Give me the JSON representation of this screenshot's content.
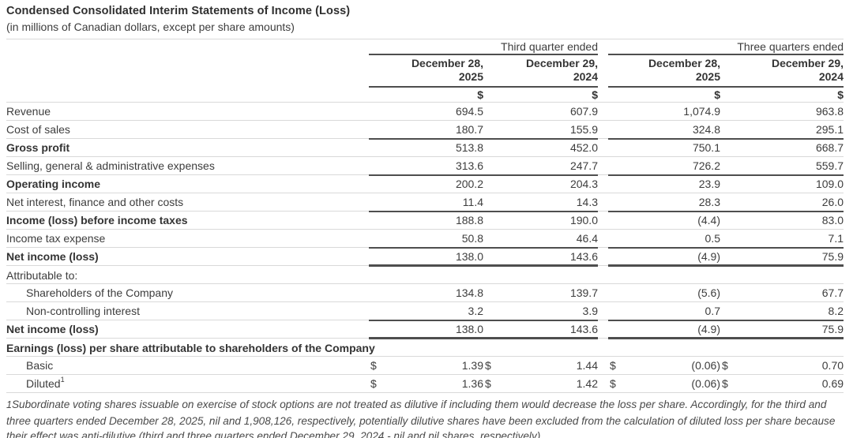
{
  "title": "Condensed Consolidated Interim Statements of Income (Loss)",
  "subtitle": "(in millions of Canadian dollars, except per share amounts)",
  "table": {
    "group_headers": [
      "Third quarter ended",
      "Three quarters ended"
    ],
    "col_headers": [
      {
        "line1": "December 28,",
        "line2": "2025"
      },
      {
        "line1": "December 29,",
        "line2": "2024"
      },
      {
        "line1": "December 28,",
        "line2": "2025"
      },
      {
        "line1": "December 29,",
        "line2": "2024"
      }
    ],
    "currency_symbol": "$",
    "rows": [
      {
        "label": "Revenue",
        "values": [
          "694.5",
          "607.9",
          "1,074.9",
          "963.8"
        ]
      },
      {
        "label": "Cost of sales",
        "values": [
          "180.7",
          "155.9",
          "324.8",
          "295.1"
        ]
      },
      {
        "label": "Gross profit",
        "bold": true,
        "rule_top": true,
        "values": [
          "513.8",
          "452.0",
          "750.1",
          "668.7"
        ]
      },
      {
        "label": "Selling, general & administrative expenses",
        "values": [
          "313.6",
          "247.7",
          "726.2",
          "559.7"
        ]
      },
      {
        "label": "Operating income",
        "bold": true,
        "rule_top": true,
        "values": [
          "200.2",
          "204.3",
          "23.9",
          "109.0"
        ]
      },
      {
        "label": "Net interest, finance and other costs",
        "values": [
          "11.4",
          "14.3",
          "28.3",
          "26.0"
        ]
      },
      {
        "label": "Income (loss) before income taxes",
        "bold": true,
        "rule_top": true,
        "values": [
          "188.8",
          "190.0",
          "(4.4)",
          "83.0"
        ]
      },
      {
        "label": "Income tax expense",
        "values": [
          "50.8",
          "46.4",
          "0.5",
          "7.1"
        ]
      },
      {
        "label": "Net income (loss)",
        "bold": true,
        "rule_top": true,
        "rule_bottom_thick": true,
        "values": [
          "138.0",
          "143.6",
          "(4.9)",
          "75.9"
        ]
      },
      {
        "label": "Attributable to:"
      },
      {
        "label": "Shareholders of the Company",
        "indent": true,
        "values": [
          "134.8",
          "139.7",
          "(5.6)",
          "67.7"
        ]
      },
      {
        "label": "Non-controlling interest",
        "indent": true,
        "values": [
          "3.2",
          "3.9",
          "0.7",
          "8.2"
        ]
      },
      {
        "label": "Net income (loss)",
        "bold": true,
        "rule_top": true,
        "rule_bottom_thick": true,
        "values": [
          "138.0",
          "143.6",
          "(4.9)",
          "75.9"
        ]
      },
      {
        "label": "Earnings (loss) per share attributable to shareholders of the Company",
        "bold": true
      },
      {
        "label": "Basic",
        "indent": true,
        "dollar": true,
        "values": [
          "1.39",
          "1.44",
          "(0.06)",
          "0.70"
        ]
      },
      {
        "label": "Diluted",
        "sup": "1",
        "indent": true,
        "dollar": true,
        "values": [
          "1.36",
          "1.42",
          "(0.06)",
          "0.69"
        ]
      }
    ]
  },
  "footnote": {
    "marker": "1",
    "text": "Subordinate voting shares issuable on exercise of stock options are not treated as dilutive if including them would decrease the loss per share. Accordingly, for the third and three quarters ended December 28, 2025, nil and 1,908,126, respectively, potentially dilutive shares have been excluded from the calculation of diluted loss per share because their effect was anti-dilutive (third and three quarters ended December 29, 2024 - nil and nil shares, respectively)."
  }
}
